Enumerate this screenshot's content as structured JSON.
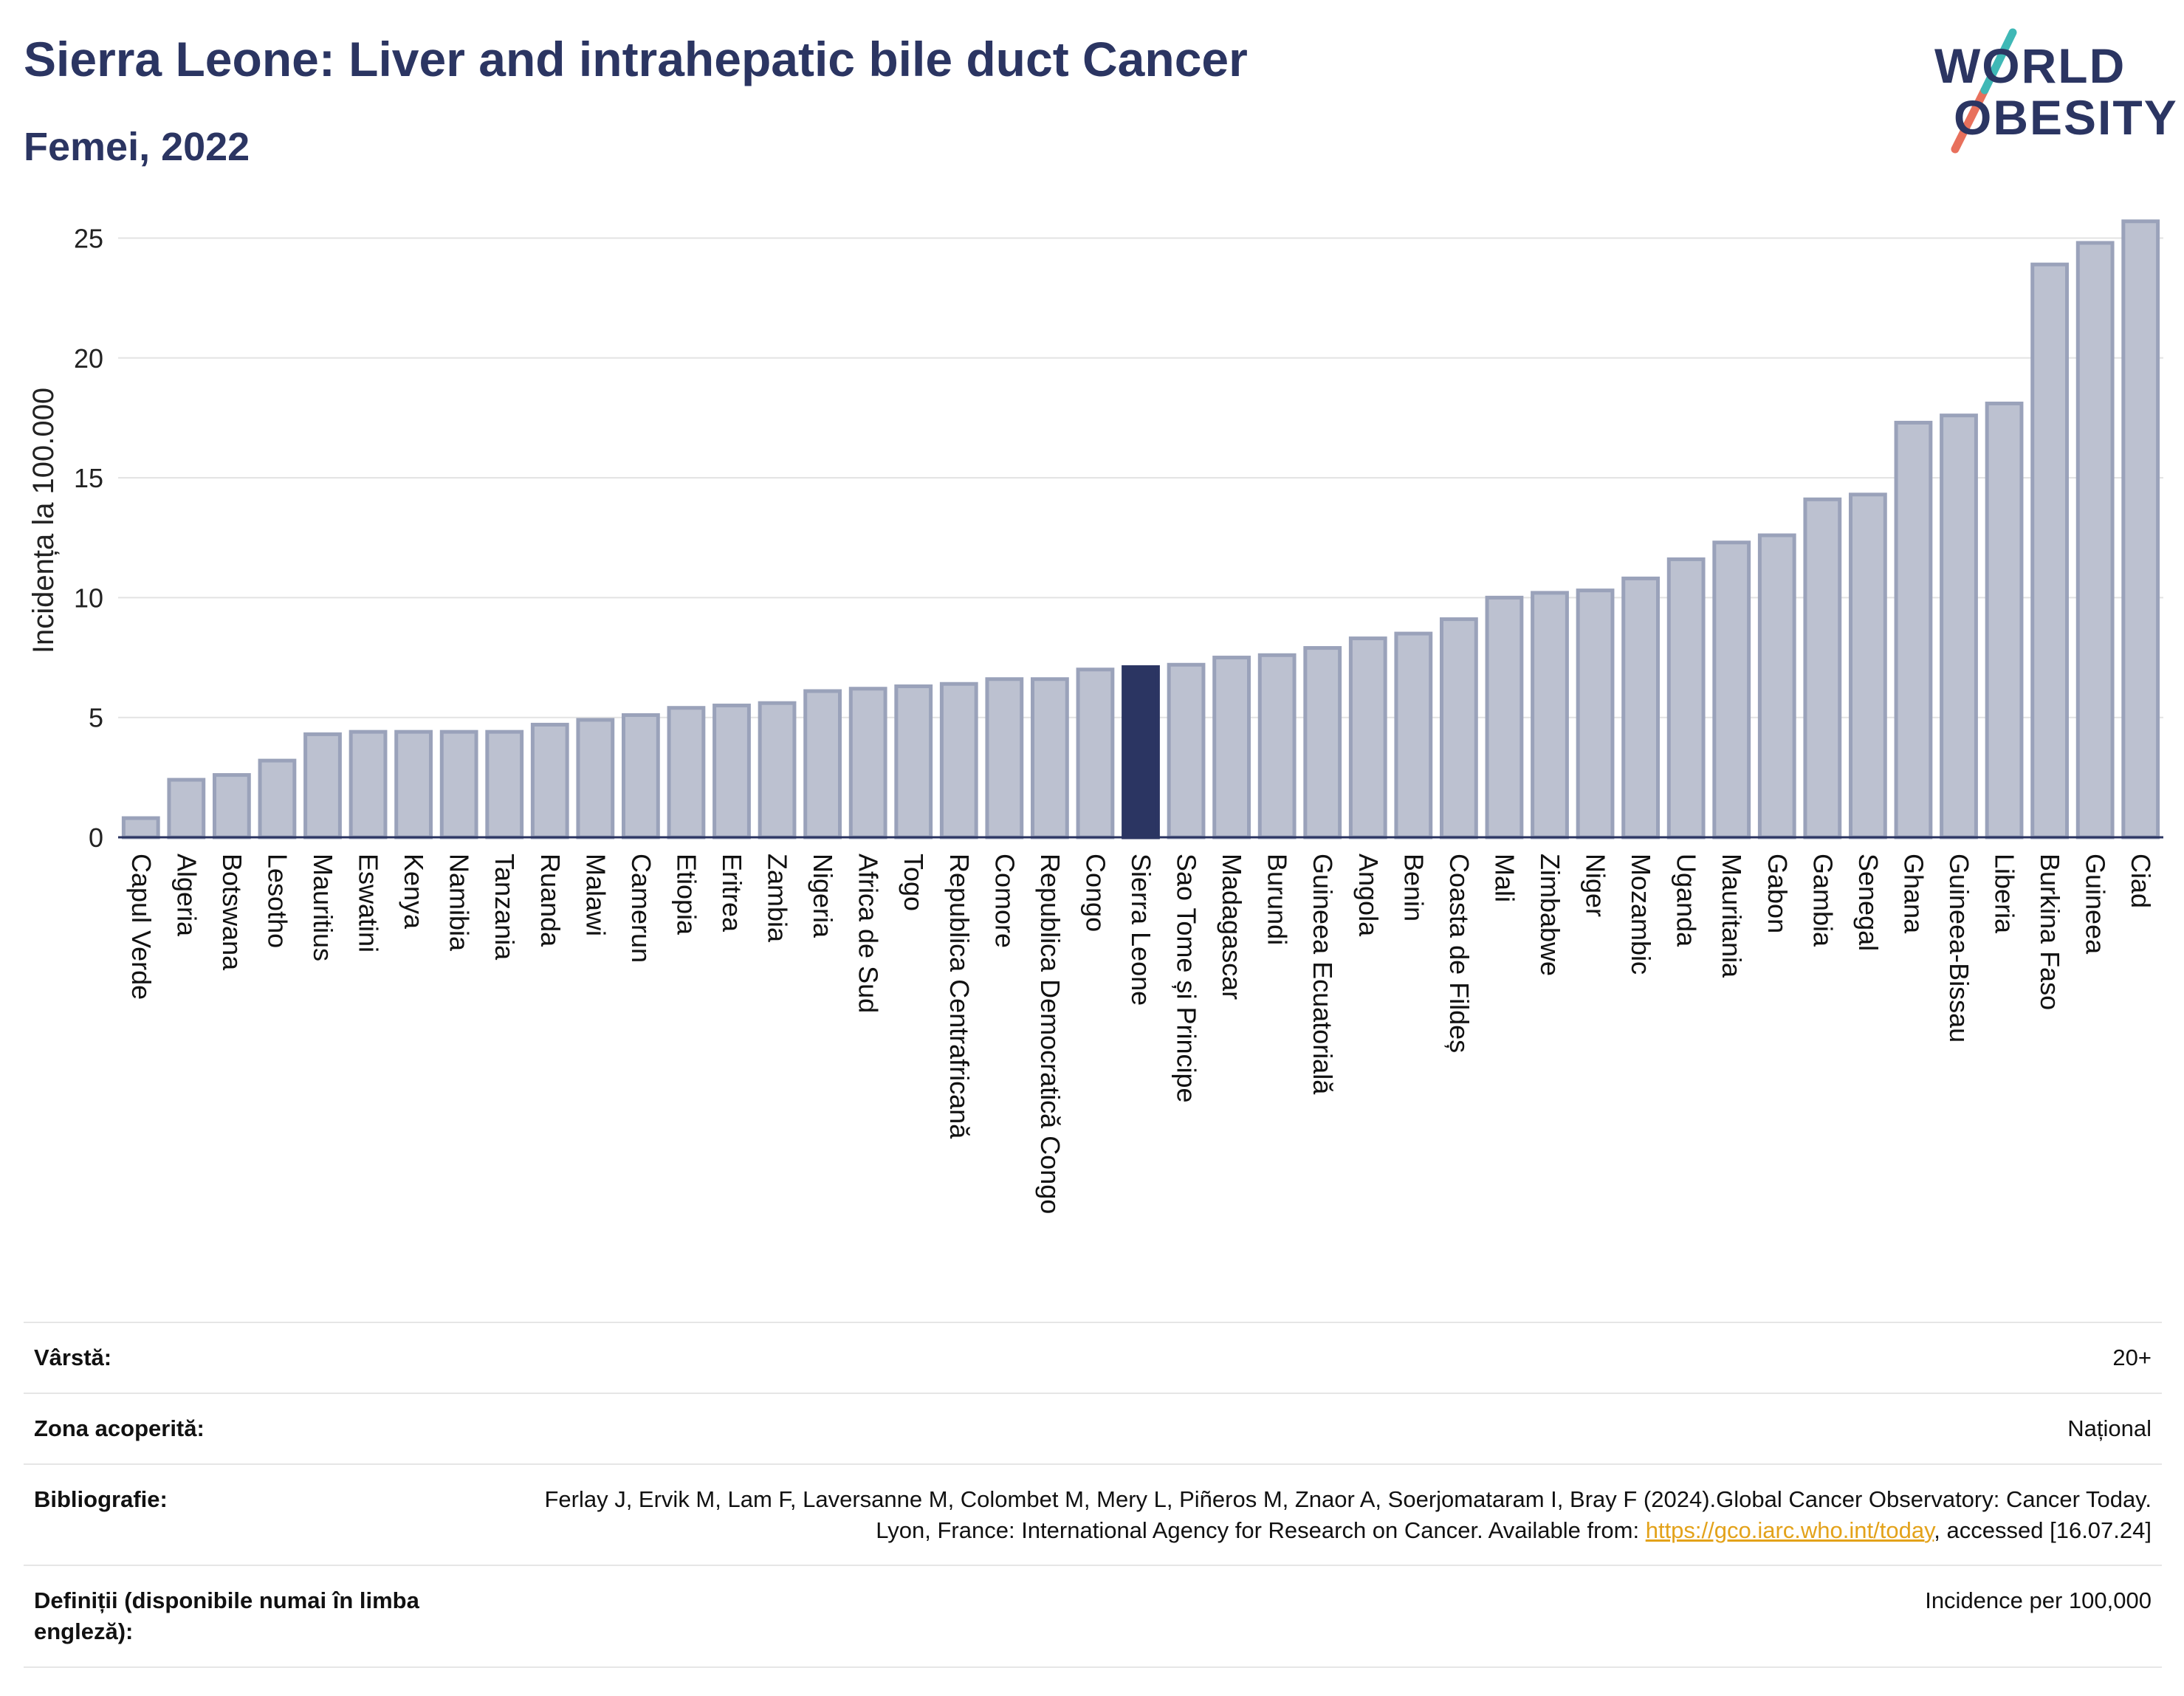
{
  "header": {
    "title": "Sierra Leone: Liver and intrahepatic bile duct Cancer",
    "subtitle": "Femei, 2022",
    "logo_line1": "WORLD",
    "logo_line2": "OBESITY"
  },
  "colors": {
    "bar": "#bcc1d0",
    "bar_border": "#9aa2ba",
    "highlight": "#2b3562",
    "grid": "#e3e3e3",
    "text": "#2b3562",
    "logo_teal": "#3fb8b6",
    "logo_coral": "#e8705c"
  },
  "chart_data": {
    "type": "bar",
    "ylabel": "Incidența la 100.000",
    "ylim": [
      0,
      26
    ],
    "yticks": [
      0,
      5,
      10,
      15,
      20,
      25
    ],
    "grid": true,
    "highlight": "Sierra Leone",
    "categories": [
      "Capul Verde",
      "Algeria",
      "Botswana",
      "Lesotho",
      "Mauritius",
      "Eswatini",
      "Kenya",
      "Namibia",
      "Tanzania",
      "Ruanda",
      "Malawi",
      "Camerun",
      "Etiopia",
      "Eritrea",
      "Zambia",
      "Nigeria",
      "Africa de Sud",
      "Togo",
      "Republica Centrafricană",
      "Comore",
      "Republica Democratică Congo",
      "Congo",
      "Sierra Leone",
      "Sao Tome și Principe",
      "Madagascar",
      "Burundi",
      "Guineea Ecuatorială",
      "Angola",
      "Benin",
      "Coasta de Fildeș",
      "Mali",
      "Zimbabwe",
      "Niger",
      "Mozambic",
      "Uganda",
      "Mauritania",
      "Gabon",
      "Gambia",
      "Senegal",
      "Ghana",
      "Guineea-Bissau",
      "Liberia",
      "Burkina Faso",
      "Guineea",
      "Ciad"
    ],
    "values": [
      0.8,
      2.4,
      2.6,
      3.2,
      4.3,
      4.4,
      4.4,
      4.4,
      4.4,
      4.7,
      4.9,
      5.1,
      5.4,
      5.5,
      5.6,
      6.1,
      6.2,
      6.3,
      6.4,
      6.6,
      6.6,
      7.0,
      7.1,
      7.2,
      7.5,
      7.6,
      7.9,
      8.3,
      8.5,
      9.1,
      10.0,
      10.2,
      10.3,
      10.8,
      11.6,
      12.3,
      12.6,
      14.1,
      14.3,
      17.3,
      17.6,
      18.1,
      23.9,
      24.8,
      25.7
    ]
  },
  "info": {
    "age_label": "Vârstă:",
    "age_value": "20+",
    "area_label": "Zona acoperită:",
    "area_value": "Național",
    "bib_label": "Bibliografie:",
    "bib_text": "Ferlay J, Ervik M, Lam F, Laversanne M, Colombet M, Mery L, Piñeros M, Znaor A, Soerjomataram I, Bray F (2024).Global Cancer Observatory: Cancer Today. Lyon, France: International Agency for Research on Cancer. Available from: ",
    "bib_link": "https://gco.iarc.who.int/today",
    "bib_after": ", accessed [16.07.24]",
    "def_label": "Definiții (disponibile numai în limba engleză):",
    "def_value": "Incidence per 100,000"
  }
}
